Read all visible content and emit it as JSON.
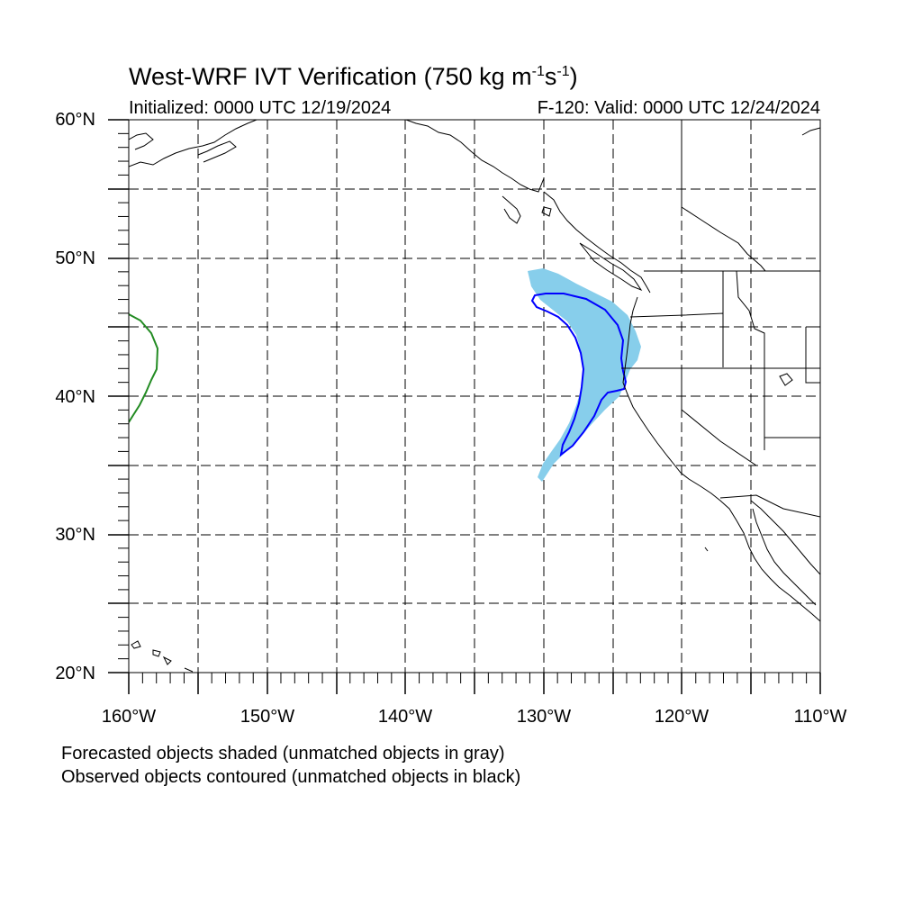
{
  "title": {
    "prefix": "West-WRF IVT Verification (750 kg m",
    "exp1": "-1",
    "mid": "s",
    "exp2": "-1",
    "suffix": ")"
  },
  "initialized": "Initialized: 0000 UTC 12/19/2024",
  "valid": "F-120: Valid: 0000 UTC 12/24/2024",
  "notes": [
    "Forecasted objects shaded (unmatched objects in gray)",
    "Observed objects contoured (unmatched objects in black)"
  ],
  "map": {
    "lon_range": [
      -160,
      -110
    ],
    "lat_range": [
      20,
      60
    ],
    "lat_labels": [
      {
        "lat": 60,
        "label": "60°N"
      },
      {
        "lat": 50,
        "label": "50°N"
      },
      {
        "lat": 40,
        "label": "40°N"
      },
      {
        "lat": 30,
        "label": "30°N"
      },
      {
        "lat": 20,
        "label": "20°N"
      }
    ],
    "lon_labels": [
      {
        "lon": -160,
        "label": "160°W"
      },
      {
        "lon": -150,
        "label": "150°W"
      },
      {
        "lon": -140,
        "label": "140°W"
      },
      {
        "lon": -130,
        "label": "130°W"
      },
      {
        "lon": -120,
        "label": "120°W"
      },
      {
        "lon": -110,
        "label": "110°W"
      }
    ],
    "gridline_spacing_deg": 5,
    "colors": {
      "forecast_fill": "#87ceeb",
      "observed_matched": "#0000ff",
      "observed_unmatched_other": "#228b22",
      "coastline": "#000000"
    }
  }
}
